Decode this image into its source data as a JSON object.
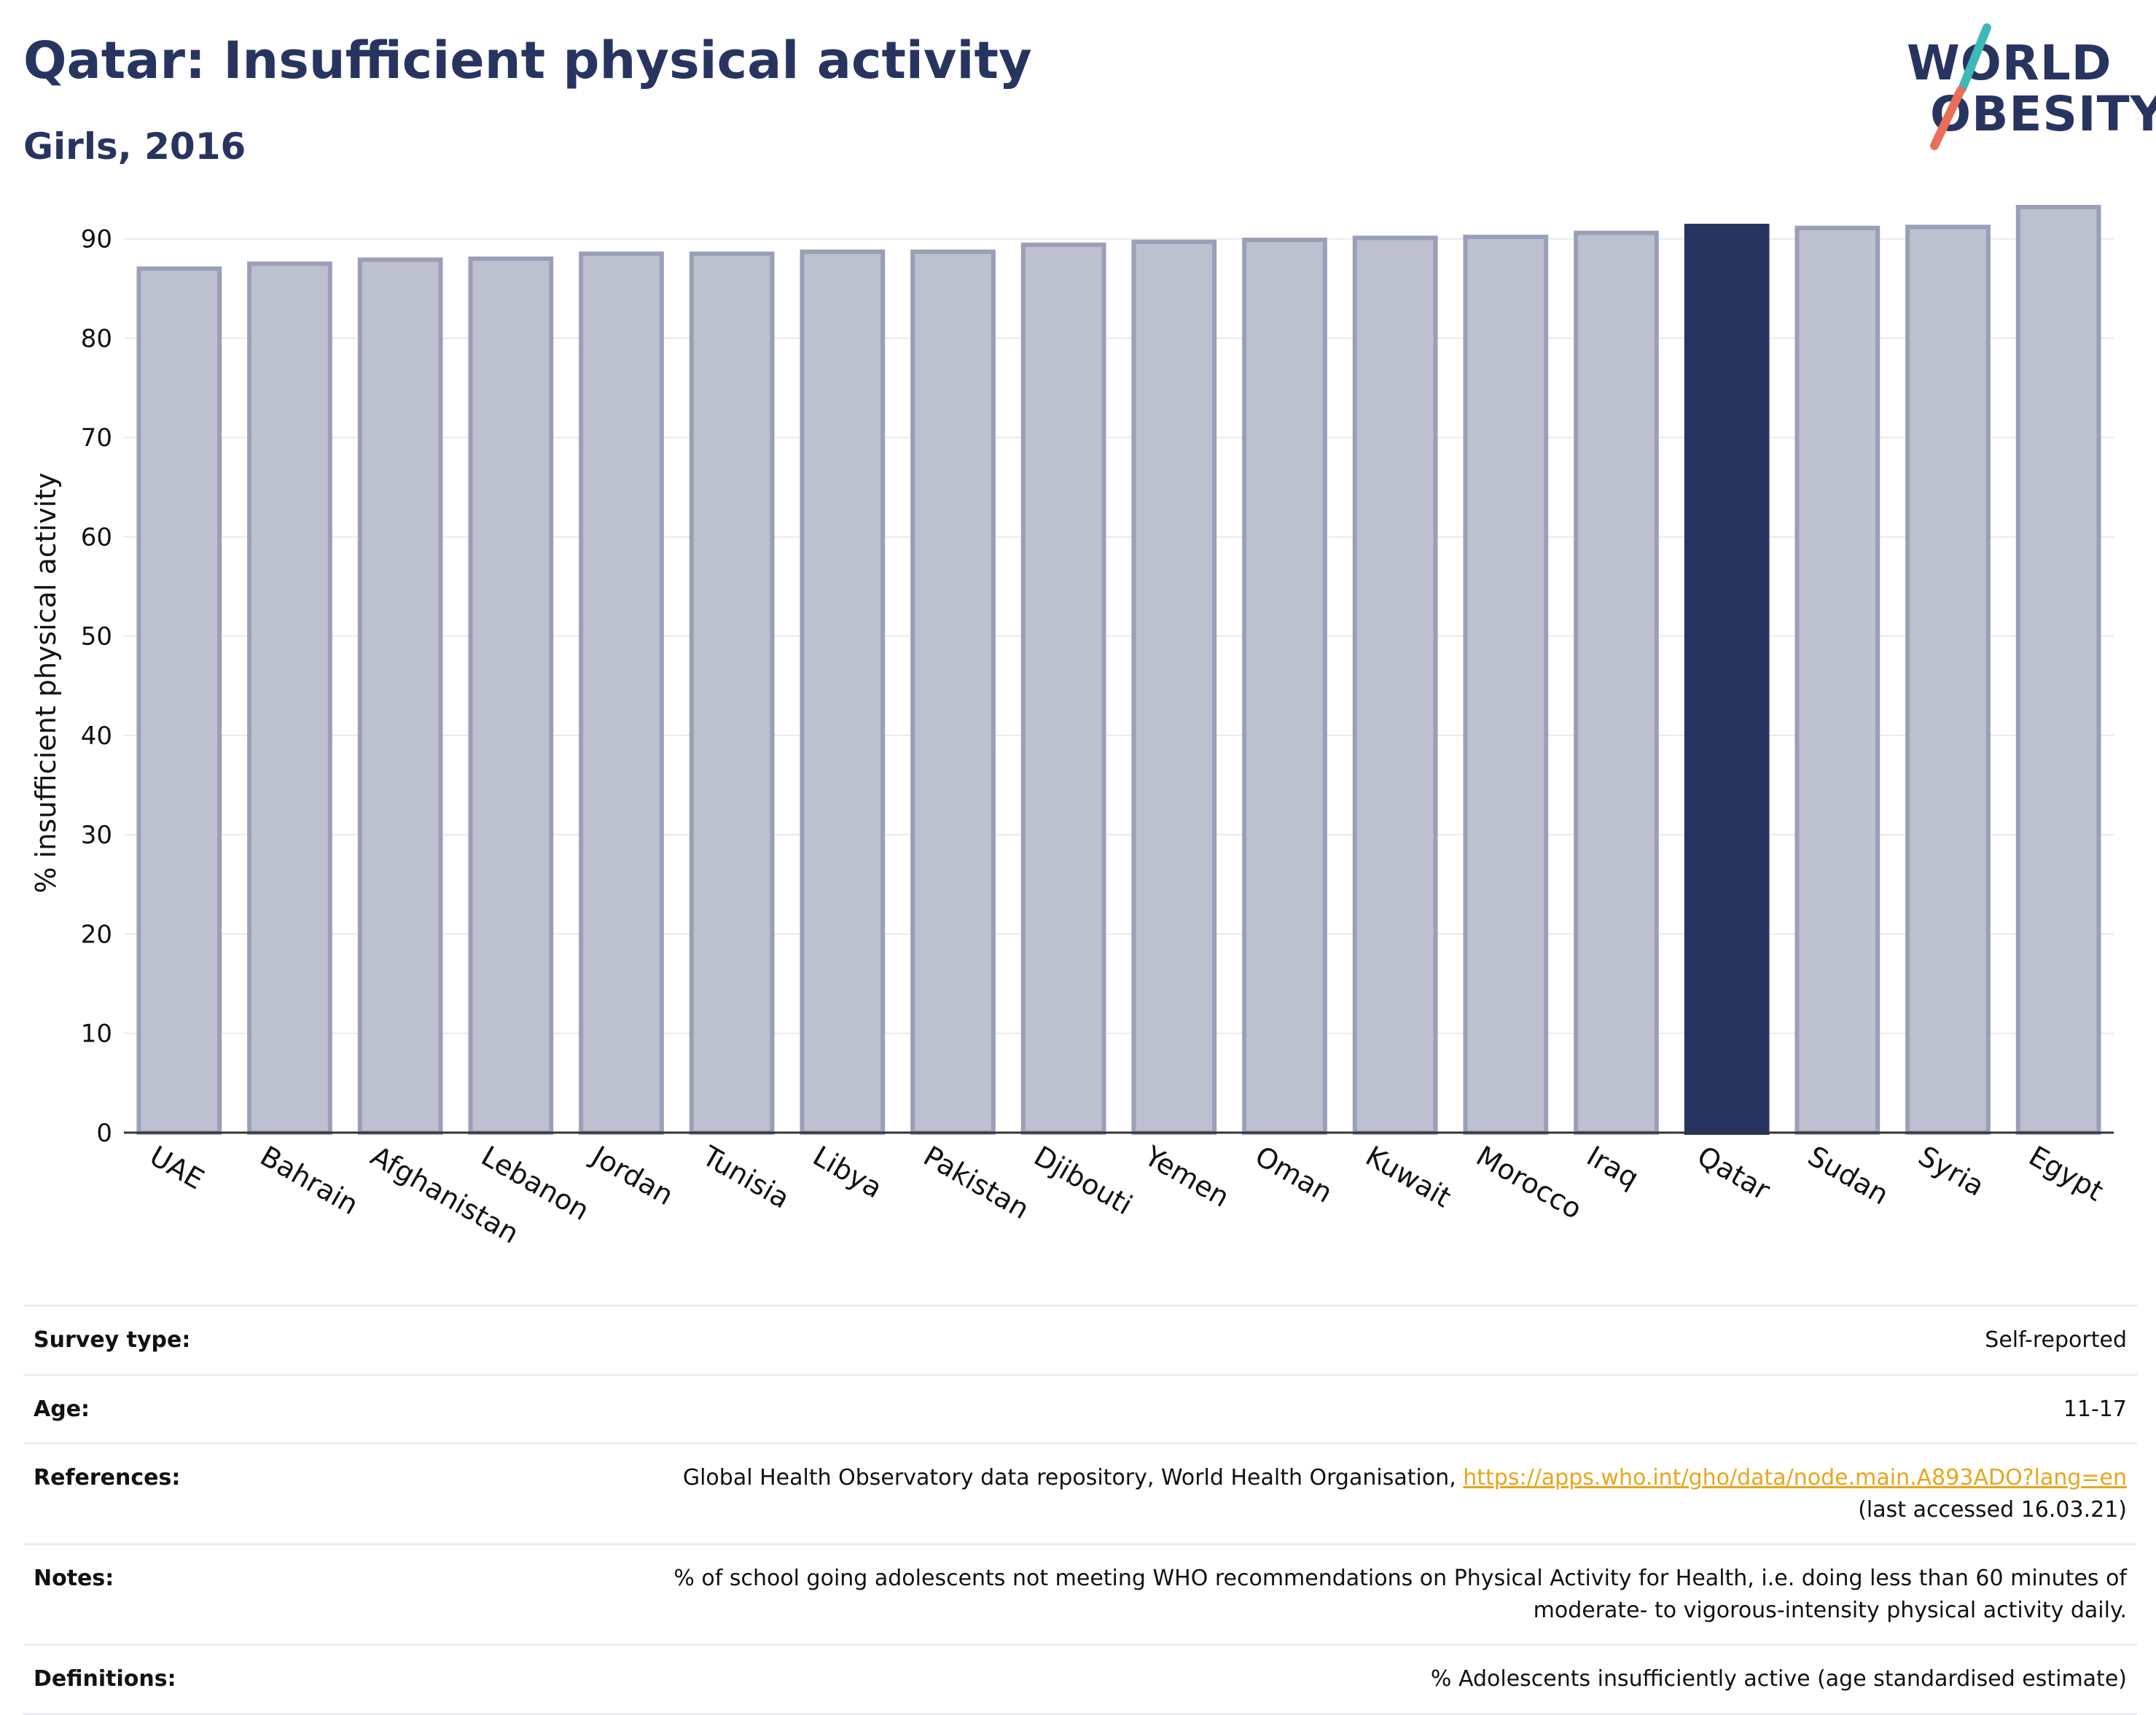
{
  "header": {
    "title": "Qatar: Insufficient physical activity",
    "subtitle": "Girls, 2016",
    "logo": {
      "line1": "WORLD",
      "line2": "OBESITY"
    }
  },
  "colors": {
    "highlight": "#283460",
    "bar_fill": "#bdc0ce",
    "bar_stroke": "#9a9eb8",
    "text": "#283460",
    "link": "#e8a61c",
    "logo_teal": "#3fb8b8",
    "logo_coral": "#e8705a"
  },
  "chart_data": {
    "type": "bar",
    "ylabel": "% insufficient physical activity",
    "ylim": [
      0,
      93.5
    ],
    "yticks": [
      0,
      10,
      20,
      30,
      40,
      50,
      60,
      70,
      80,
      90
    ],
    "grid": true,
    "highlight": "Qatar",
    "categories": [
      "UAE",
      "Bahrain",
      "Afghanistan",
      "Lebanon",
      "Jordan",
      "Tunisia",
      "Libya",
      "Pakistan",
      "Djibouti",
      "Yemen",
      "Oman",
      "Kuwait",
      "Morocco",
      "Iraq",
      "Qatar",
      "Sudan",
      "Syria",
      "Egypt"
    ],
    "values": [
      87.0,
      87.5,
      87.9,
      88.0,
      88.5,
      88.5,
      88.7,
      88.7,
      89.4,
      89.7,
      89.9,
      90.1,
      90.2,
      90.6,
      91.3,
      91.1,
      91.2,
      93.2
    ]
  },
  "info": {
    "survey_type": {
      "label": "Survey type:",
      "value": "Self-reported"
    },
    "age": {
      "label": "Age:",
      "value": "11-17"
    },
    "references": {
      "label": "References:",
      "text": "Global Health Observatory data repository, World Health Organisation, ",
      "link": "https://apps.who.int/gho/data/node.main.A893ADO?lang=en",
      "accessed": "(last accessed 16.03.21)"
    },
    "notes": {
      "label": "Notes:",
      "line1": "% of school going adolescents not meeting WHO recommendations on Physical Activity for Health, i.e. doing less than 60 minutes of",
      "line2": "moderate- to vigorous-intensity physical activity daily."
    },
    "definitions": {
      "label": "Definitions:",
      "value": "% Adolescents insufficiently active (age standardised estimate)"
    }
  }
}
